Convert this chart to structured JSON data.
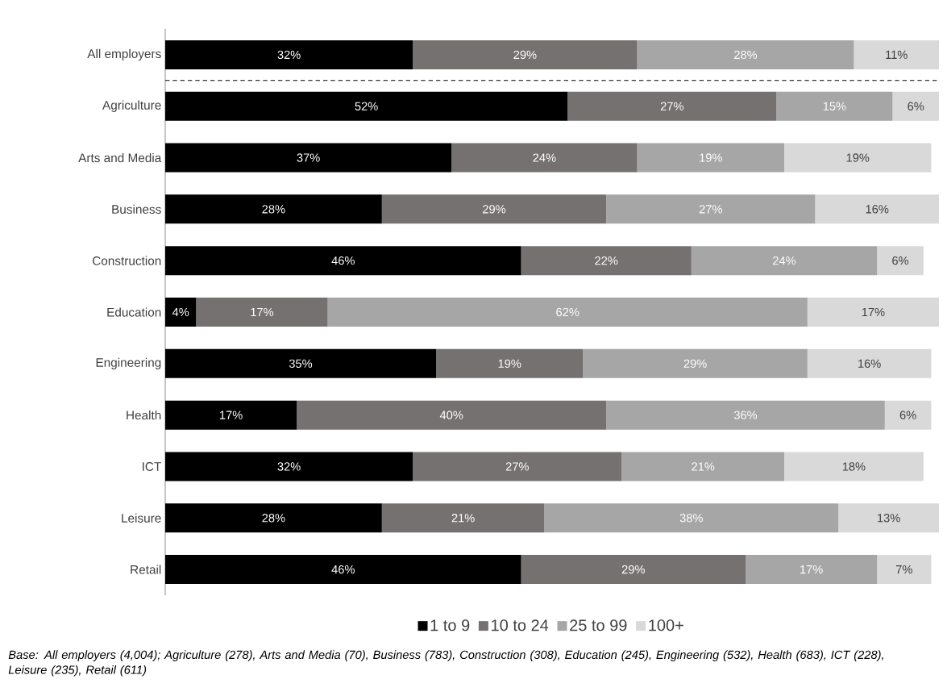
{
  "chart_data": {
    "type": "bar",
    "orientation": "horizontal",
    "stacked": true,
    "categories": [
      "All employers",
      "Agriculture",
      "Arts and Media",
      "Business",
      "Construction",
      "Education",
      "Engineering",
      "Health",
      "ICT",
      "Leisure",
      "Retail"
    ],
    "series": [
      {
        "name": "1 to 9",
        "color": "#000000",
        "values": [
          32,
          52,
          37,
          28,
          46,
          4,
          35,
          17,
          32,
          28,
          46
        ],
        "value_labels": [
          "32%",
          "52%",
          "37%",
          "28%",
          "46%",
          "4%",
          "35%",
          "17%",
          "32%",
          "28%",
          "46%"
        ]
      },
      {
        "name": "10 to 24",
        "color": "#767171",
        "values": [
          29,
          27,
          24,
          29,
          22,
          17,
          19,
          40,
          27,
          21,
          29
        ],
        "value_labels": [
          "29%",
          "27%",
          "24%",
          "29%",
          "22%",
          "17%",
          "19%",
          "40%",
          "27%",
          "21%",
          "29%"
        ]
      },
      {
        "name": "25 to 99",
        "color": "#a6a6a6",
        "values": [
          28,
          15,
          19,
          27,
          24,
          62,
          29,
          36,
          21,
          38,
          17
        ],
        "value_labels": [
          "28%",
          "15%",
          "19%",
          "27%",
          "24%",
          "62%",
          "29%",
          "36%",
          "21%",
          "38%",
          "17%"
        ]
      },
      {
        "name": "100+",
        "color": "#d9d9d9",
        "values": [
          11,
          6,
          19,
          16,
          6,
          17,
          16,
          6,
          18,
          13,
          7
        ],
        "value_labels": [
          "11%",
          "6%",
          "19%",
          "16%",
          "6%",
          "17%",
          "16%",
          "6%",
          "18%",
          "13%",
          "7%"
        ]
      }
    ],
    "xlim": [
      0,
      100
    ],
    "tick_labels": "y",
    "legend": "bottom",
    "annotations": [
      "Base: All employers (4,004); Agriculture (278), Arts and Media (70), Business (783), Construction (308), Education (245), Engineering (532), Health (683), ICT (228), Leisure (235), Retail (611)"
    ]
  }
}
